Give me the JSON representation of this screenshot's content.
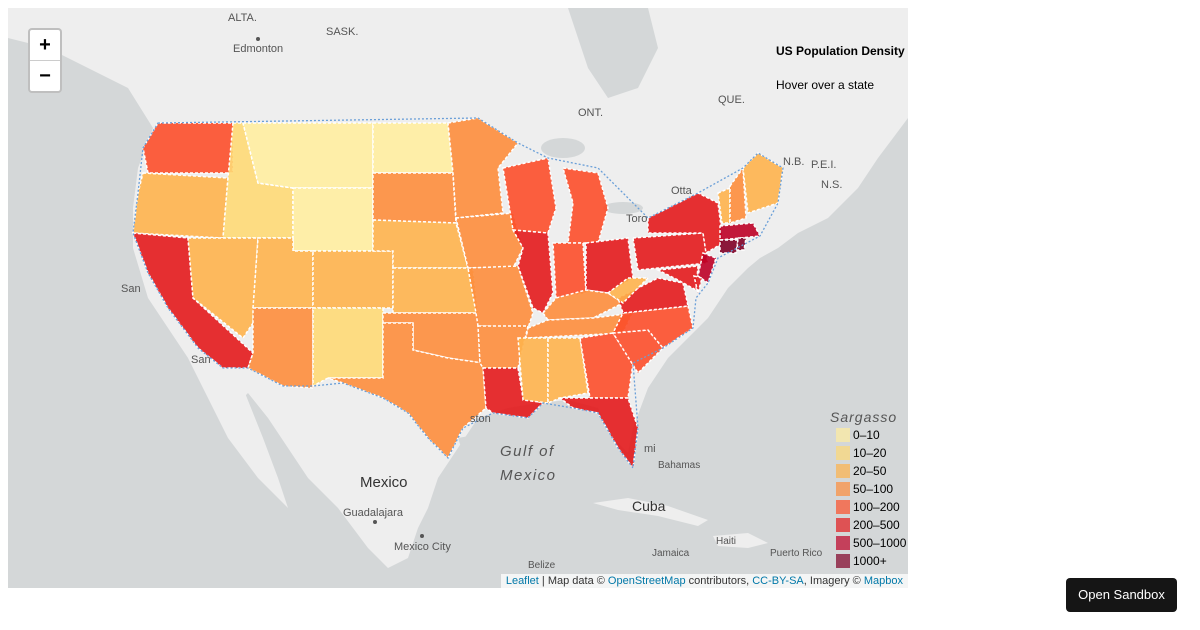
{
  "map": {
    "zoom_in": "+",
    "zoom_out": "−",
    "place_labels": {
      "alta": "ALTA.",
      "sask": "SASK.",
      "edmonton": "Edmonton",
      "ont": "ONT.",
      "que": "QUE.",
      "nb": "N.B.",
      "pei": "P.E.I.",
      "ns": "N.S.",
      "ottawa": "Otta",
      "toronto": "Toro",
      "san_francisco": "San",
      "san_diego": "San",
      "gulf_line1": "Gulf of",
      "gulf_line2": "Mexico",
      "mexico": "Mexico",
      "guadalajara": "Guadalajara",
      "mexico_city": "Mexico City",
      "cuba": "Cuba",
      "bahamas": "Bahamas",
      "jamaica": "Jamaica",
      "haiti": "Haiti",
      "belize": "Belize",
      "puerto_rico": "Puerto Rico",
      "sargasso": "Sargasso",
      "miami": "mi",
      "houston": "ston"
    }
  },
  "info": {
    "title": "US Population Density",
    "hint": "Hover over a state"
  },
  "legend": {
    "items": [
      {
        "label": "0–10",
        "color": "#FFEDA0"
      },
      {
        "label": "10–20",
        "color": "#FED976"
      },
      {
        "label": "20–50",
        "color": "#FEB24C"
      },
      {
        "label": "50–100",
        "color": "#FD8D3C"
      },
      {
        "label": "100–200",
        "color": "#FC4E2A"
      },
      {
        "label": "200–500",
        "color": "#E31A1C"
      },
      {
        "label": "500–1000",
        "color": "#BD0026"
      },
      {
        "label": "1000+",
        "color": "#800026"
      }
    ]
  },
  "attribution": {
    "leaflet": "Leaflet",
    "sep": " | Map data © ",
    "osm": "OpenStreetMap",
    "contrib": " contributors, ",
    "ccbysa": "CC-BY-SA",
    "imagery": ", Imagery © ",
    "mapbox": "Mapbox"
  },
  "sandbox_button": "Open Sandbox",
  "colors": {
    "land": "#eeeeee",
    "water": "#d4d7d8",
    "state_border": "#ffffff",
    "country_outline": "#6a9fd8"
  }
}
